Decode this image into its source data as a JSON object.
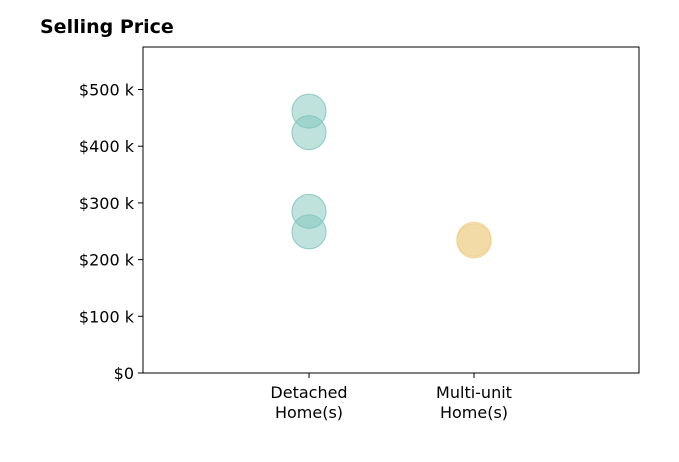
{
  "chart_data": {
    "type": "scatter",
    "title": "Selling Price",
    "xlabel": "",
    "ylabel": "",
    "categories": [
      [
        "Detached",
        "Home(s)"
      ],
      [
        "Multi-unit",
        "Home(s)"
      ]
    ],
    "y_ticks": [
      {
        "value": 0,
        "label": "$0"
      },
      {
        "value": 100000,
        "label": "$100 k"
      },
      {
        "value": 200000,
        "label": "$200 k"
      },
      {
        "value": 300000,
        "label": "$300 k"
      },
      {
        "value": 400000,
        "label": "$400 k"
      },
      {
        "value": 500000,
        "label": "$500 k"
      }
    ],
    "ylim": [
      0,
      575000
    ],
    "grid": false,
    "series": [
      {
        "category_index": 0,
        "color": "#7fc6bc",
        "values": [
          462000,
          424000,
          285000,
          249000
        ]
      },
      {
        "category_index": 1,
        "color": "#f0d08a",
        "values": [
          236000,
          233000
        ]
      }
    ]
  }
}
